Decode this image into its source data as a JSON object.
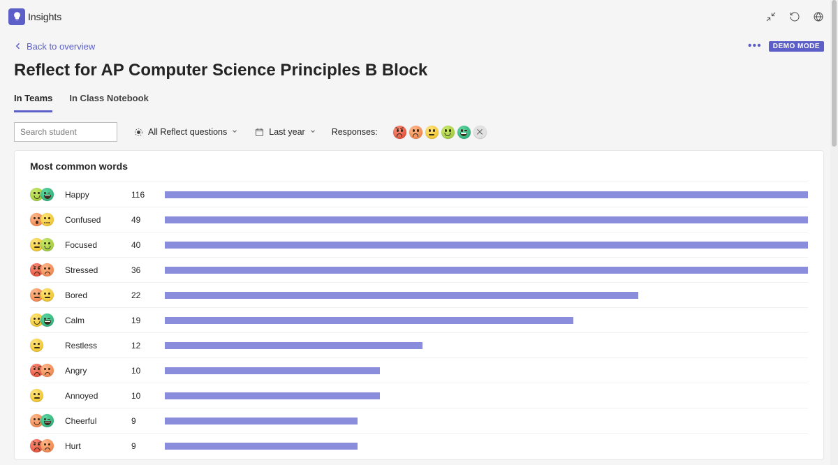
{
  "app": {
    "title": "Insights"
  },
  "header": {
    "back_label": "Back to overview",
    "page_title": "Reflect for AP Computer Science Principles B Block",
    "demo_badge": "DEMO MODE"
  },
  "tabs": [
    {
      "label": "In Teams",
      "active": true
    },
    {
      "label": "In Class Notebook",
      "active": false
    }
  ],
  "filters": {
    "search_placeholder": "Search student",
    "questions_label": "All Reflect questions",
    "timerange_label": "Last year",
    "responses_label": "Responses:"
  },
  "response_faces": [
    {
      "color": "red",
      "mouth": "frown",
      "brows": true
    },
    {
      "color": "orange",
      "mouth": "frown"
    },
    {
      "color": "yellow",
      "mouth": "flat"
    },
    {
      "color": "lime",
      "mouth": "smile"
    },
    {
      "color": "teal",
      "mouth": "grin",
      "wink": true
    }
  ],
  "chart": {
    "title": "Most common words",
    "bar_color": "#8a8ddc",
    "max_value": 116,
    "rows": [
      {
        "label": "Happy",
        "count": 116,
        "bar_pct": 100,
        "faces": [
          {
            "color": "lime",
            "mouth": "smile"
          },
          {
            "color": "teal",
            "mouth": "grin",
            "wink": true
          }
        ]
      },
      {
        "label": "Confused",
        "count": 49,
        "bar_pct": 100,
        "faces": [
          {
            "color": "orange",
            "mouth": "o"
          },
          {
            "color": "yellow",
            "mouth": "squig"
          }
        ]
      },
      {
        "label": "Focused",
        "count": 40,
        "bar_pct": 100,
        "faces": [
          {
            "color": "yellow",
            "mouth": "flat"
          },
          {
            "color": "lime",
            "mouth": "smile"
          }
        ]
      },
      {
        "label": "Stressed",
        "count": 36,
        "bar_pct": 100,
        "faces": [
          {
            "color": "red",
            "mouth": "frown",
            "brows": true
          },
          {
            "color": "orange",
            "mouth": "frown"
          }
        ]
      },
      {
        "label": "Bored",
        "count": 22,
        "bar_pct": 73.6,
        "faces": [
          {
            "color": "orange",
            "mouth": "flat"
          },
          {
            "color": "yellow",
            "mouth": "flat"
          }
        ]
      },
      {
        "label": "Calm",
        "count": 19,
        "bar_pct": 63.5,
        "faces": [
          {
            "color": "yellow",
            "mouth": "smile"
          },
          {
            "color": "teal",
            "mouth": "grin",
            "wink": true
          }
        ]
      },
      {
        "label": "Restless",
        "count": 12,
        "bar_pct": 40.1,
        "faces": [
          {
            "color": "yellow",
            "mouth": "flat"
          }
        ]
      },
      {
        "label": "Angry",
        "count": 10,
        "bar_pct": 33.4,
        "faces": [
          {
            "color": "red",
            "mouth": "frown",
            "brows": true
          },
          {
            "color": "orange",
            "mouth": "frown"
          }
        ]
      },
      {
        "label": "Annoyed",
        "count": 10,
        "bar_pct": 33.4,
        "faces": [
          {
            "color": "yellow",
            "mouth": "flat"
          }
        ]
      },
      {
        "label": "Cheerful",
        "count": 9,
        "bar_pct": 30.0,
        "faces": [
          {
            "color": "orange",
            "mouth": "smile"
          },
          {
            "color": "teal",
            "mouth": "grin",
            "wink": true
          }
        ]
      },
      {
        "label": "Hurt",
        "count": 9,
        "bar_pct": 30.0,
        "faces": [
          {
            "color": "red",
            "mouth": "frown",
            "brows": true
          },
          {
            "color": "orange",
            "mouth": "frown"
          }
        ]
      }
    ]
  }
}
